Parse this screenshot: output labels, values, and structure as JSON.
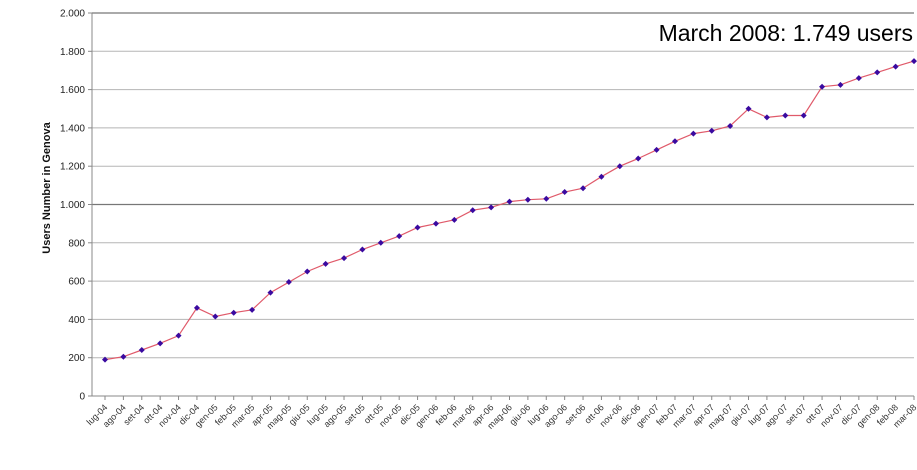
{
  "chart_data": {
    "type": "line",
    "title": "",
    "xlabel": "",
    "ylabel": "Users Number in Genova",
    "annotation": "March 2008: 1.749 users",
    "ylim": [
      0,
      2000
    ],
    "y_ticks": [
      0,
      200,
      400,
      600,
      800,
      1000,
      1200,
      1400,
      1600,
      1800,
      2000
    ],
    "y_tick_labels": [
      "0",
      "200",
      "400",
      "600",
      "800",
      "1.000",
      "1.200",
      "1.400",
      "1.600",
      "1.800",
      "2.000"
    ],
    "grid": true,
    "line_color": "#e05a6a",
    "marker_color": "#3a0aa0",
    "categories": [
      "lug-04",
      "ago-04",
      "set-04",
      "ott-04",
      "nov-04",
      "dic-04",
      "gen-05",
      "feb-05",
      "mar-05",
      "apr-05",
      "mag-05",
      "giu-05",
      "lug-05",
      "ago-05",
      "set-05",
      "ott-05",
      "nov-05",
      "dic-05",
      "gen-06",
      "feb-06",
      "mar-06",
      "apr-06",
      "mag-06",
      "giu-06",
      "lug-06",
      "ago-06",
      "set-06",
      "ott-06",
      "nov-06",
      "dic-06",
      "gen-07",
      "feb-07",
      "mar-07",
      "apr-07",
      "mag-07",
      "giu-07",
      "lug-07",
      "ago-07",
      "set-07",
      "ott-07",
      "nov-07",
      "dic-07",
      "gen-08",
      "feb-08",
      "mar-08"
    ],
    "series": [
      {
        "values": [
          190,
          205,
          240,
          275,
          315,
          460,
          415,
          435,
          450,
          540,
          595,
          650,
          690,
          720,
          765,
          800,
          835,
          880,
          900,
          920,
          970,
          985,
          1015,
          1025,
          1030,
          1065,
          1085,
          1145,
          1200,
          1240,
          1285,
          1330,
          1370,
          1385,
          1410,
          1500,
          1455,
          1465,
          1465,
          1615,
          1625,
          1660,
          1690,
          1720,
          1749
        ]
      }
    ]
  }
}
